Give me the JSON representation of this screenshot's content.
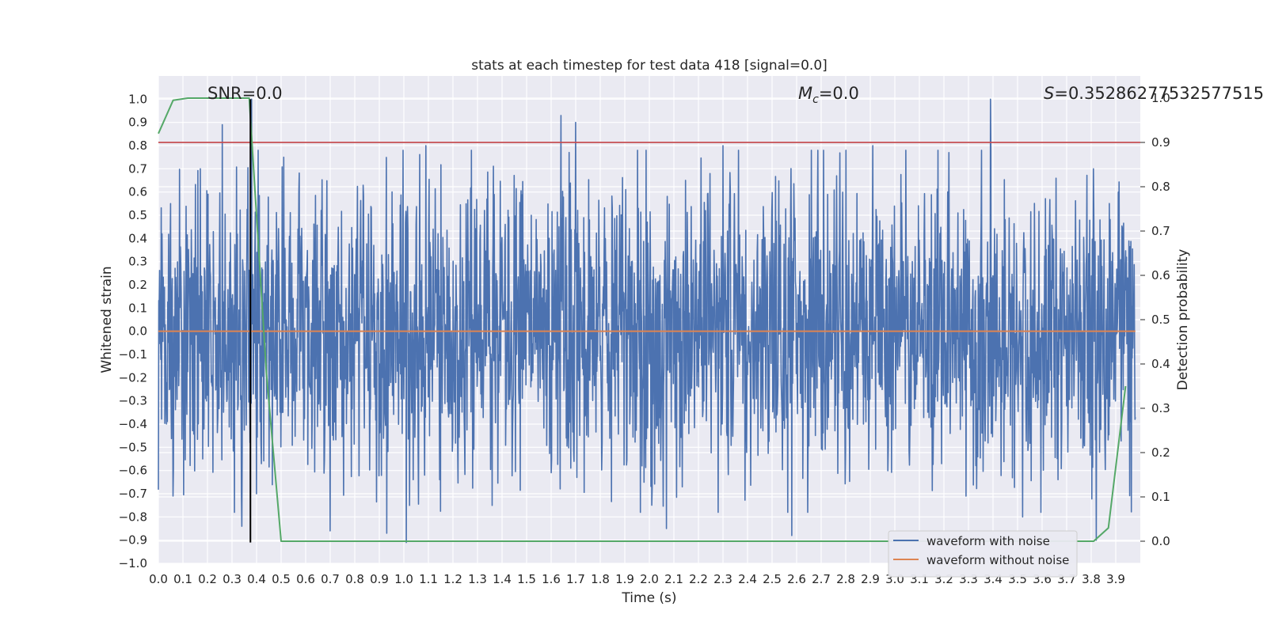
{
  "chart_data": {
    "type": "line",
    "title": "stats at each timestep for test data 418 [signal=0.0]",
    "xlabel": "Time (s)",
    "ylabel_left": "Whitened strain",
    "ylabel_right": "Detection probability",
    "xlim": [
      0.0,
      4.0
    ],
    "ylim_left": [
      -1.0,
      1.1
    ],
    "ylim_right": [
      -0.05,
      1.05
    ],
    "x_ticks": [
      "0.0",
      "0.1",
      "0.2",
      "0.3",
      "0.4",
      "0.5",
      "0.6",
      "0.7",
      "0.8",
      "0.9",
      "1.0",
      "1.1",
      "1.2",
      "1.3",
      "1.4",
      "1.5",
      "1.6",
      "1.7",
      "1.8",
      "1.9",
      "2.0",
      "2.1",
      "2.2",
      "2.3",
      "2.4",
      "2.5",
      "2.6",
      "2.7",
      "2.8",
      "2.9",
      "3.0",
      "3.1",
      "3.2",
      "3.3",
      "3.4",
      "3.5",
      "3.6",
      "3.7",
      "3.8",
      "3.9"
    ],
    "y_ticks_left": [
      "1.0",
      "0.9",
      "0.8",
      "0.7",
      "0.6",
      "0.5",
      "0.4",
      "0.3",
      "0.2",
      "0.1",
      "0.0",
      "−0.1",
      "−0.2",
      "−0.3",
      "−0.4",
      "−0.5",
      "−0.6",
      "−0.7",
      "−0.8",
      "−0.9",
      "−1.0"
    ],
    "y_ticks_right": [
      "1.0",
      "0.9",
      "0.8",
      "0.7",
      "0.6",
      "0.5",
      "0.4",
      "0.3",
      "0.2",
      "0.1",
      "0.0"
    ],
    "annotations": {
      "snr": "SNR=0.0",
      "mc_symbol": "M",
      "mc_sub": "c",
      "mc_value": "=0.0",
      "s_symbol": "S",
      "s_value": "=0.35286277532577515"
    },
    "grid": true,
    "legend_position": "lower-right",
    "series": [
      {
        "name": "waveform with noise",
        "axis": "left",
        "color": "#4c72b0",
        "description_values": "whitened noise, amplitude approx within -0.9 to 1.0",
        "peaks": [
          {
            "x": 0.05,
            "y": 0.55
          },
          {
            "x": 0.06,
            "y": -0.71
          },
          {
            "x": 0.17,
            "y": 0.7
          },
          {
            "x": 0.18,
            "y": -0.55
          },
          {
            "x": 0.26,
            "y": 0.89
          },
          {
            "x": 0.34,
            "y": 0.74
          },
          {
            "x": 0.34,
            "y": -0.84
          },
          {
            "x": 0.38,
            "y": 1.0
          },
          {
            "x": 0.4,
            "y": -0.7
          },
          {
            "x": 0.51,
            "y": 0.75
          },
          {
            "x": 0.7,
            "y": -0.86
          },
          {
            "x": 0.93,
            "y": -0.87
          },
          {
            "x": 1.01,
            "y": -0.91
          },
          {
            "x": 1.09,
            "y": 0.8
          },
          {
            "x": 1.36,
            "y": -0.75
          },
          {
            "x": 1.64,
            "y": 0.93
          },
          {
            "x": 1.7,
            "y": 0.9
          },
          {
            "x": 2.07,
            "y": -0.85
          },
          {
            "x": 2.3,
            "y": 0.8
          },
          {
            "x": 2.58,
            "y": -0.88
          },
          {
            "x": 2.66,
            "y": 0.78
          },
          {
            "x": 2.91,
            "y": 0.8
          },
          {
            "x": 3.22,
            "y": 0.77
          },
          {
            "x": 3.39,
            "y": 1.0
          },
          {
            "x": 3.52,
            "y": -0.8
          },
          {
            "x": 3.81,
            "y": 0.7
          },
          {
            "x": 3.82,
            "y": -0.9
          }
        ]
      },
      {
        "name": "waveform without noise",
        "axis": "left",
        "color": "#dd8452",
        "x": [
          0.0,
          4.0
        ],
        "y": [
          0.0,
          0.0
        ]
      },
      {
        "name": "",
        "axis": "right",
        "color": "#55a868",
        "x": [
          0.0,
          0.06,
          0.12,
          0.19,
          0.25,
          0.31,
          0.37,
          0.44,
          0.5,
          0.56,
          0.62,
          1.0,
          2.0,
          3.0,
          3.5,
          3.68,
          3.75,
          3.81,
          3.87,
          3.94
        ],
        "y": [
          0.92,
          0.995,
          1.0,
          1.0,
          1.0,
          1.0,
          1.0,
          0.38,
          0.0,
          0.0,
          0.0,
          0.0,
          0.0,
          0.0,
          0.0,
          0.0,
          0.0,
          0.0,
          0.03,
          0.35
        ]
      }
    ],
    "threshold_line": {
      "axis": "right",
      "y": 0.9,
      "color": "#c44e52"
    },
    "vertical_marker": {
      "x": 0.375,
      "y_range": [
        -0.91,
        1.0
      ],
      "color": "#000000"
    },
    "axes_background": "#eaeaf2",
    "grid_color": "#ffffff"
  }
}
